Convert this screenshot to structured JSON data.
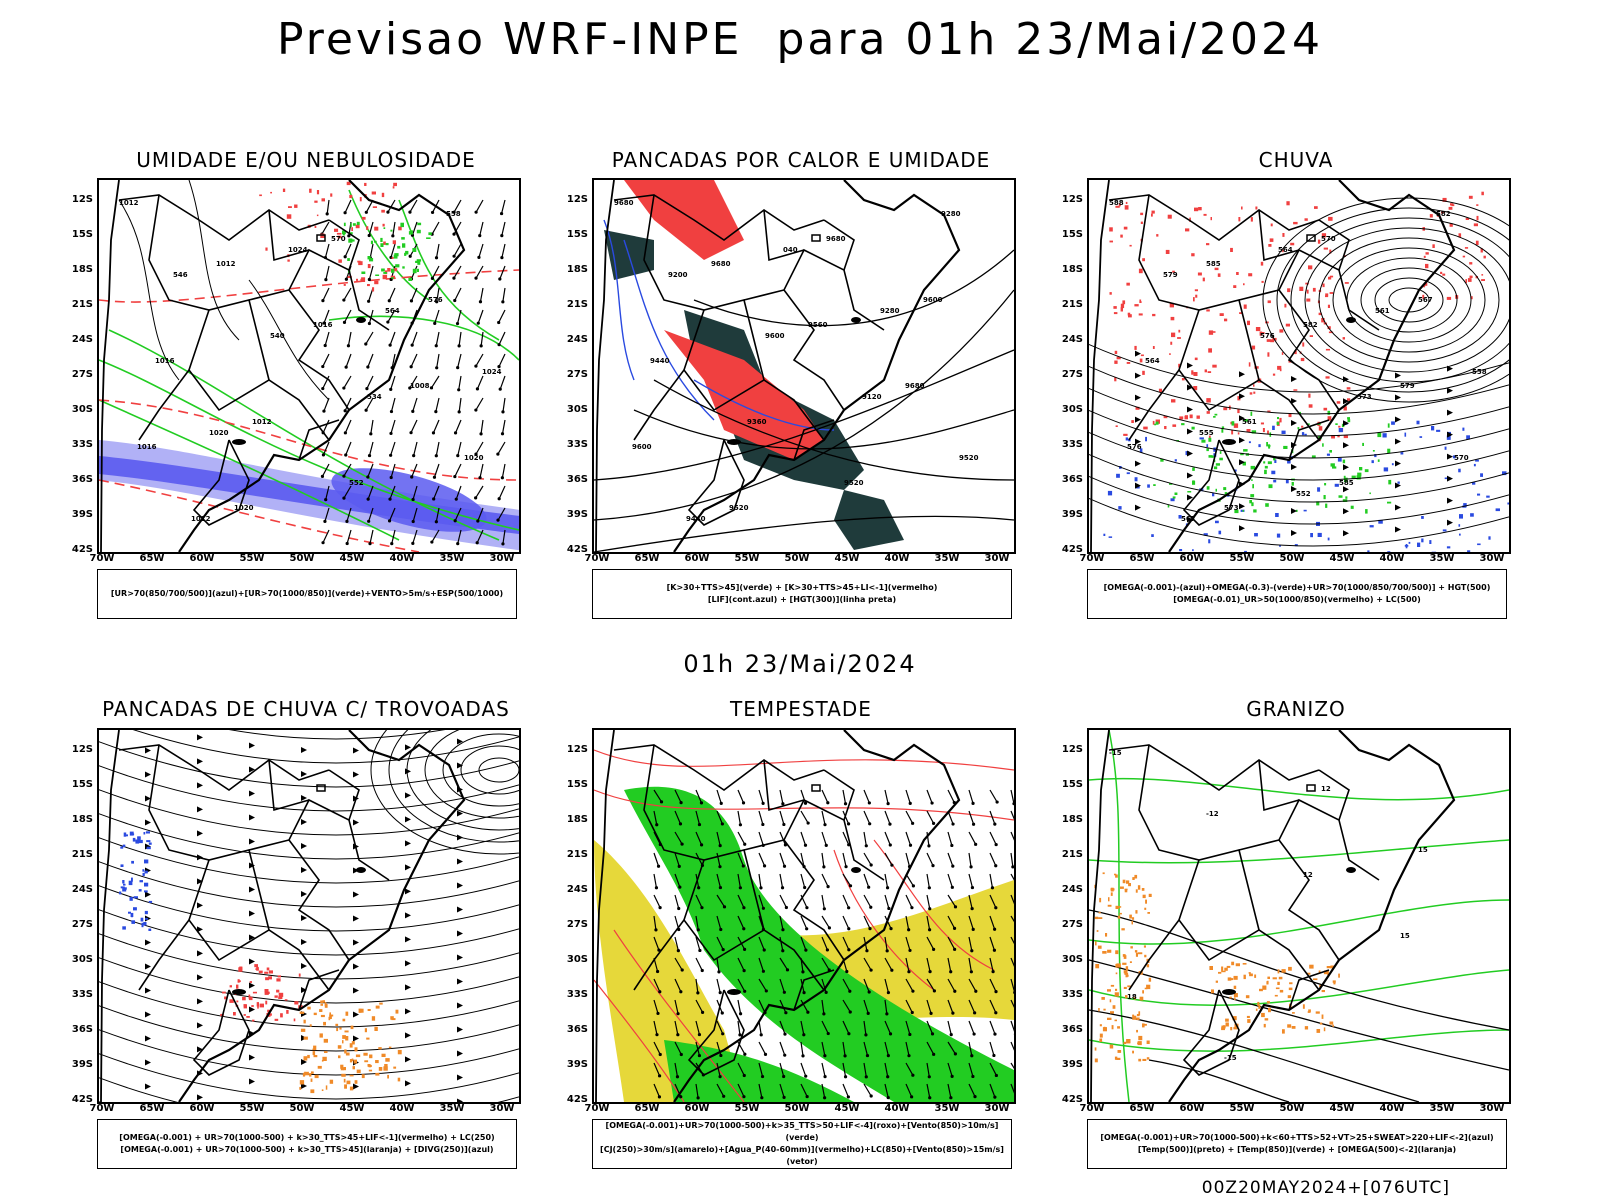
{
  "title": "Previsao WRF-INPE  para 01h 23/Mai/2024",
  "mid_title": "01h 23/Mai/2024",
  "footer": "00Z20MAY2024+[076UTC]",
  "lat_ticks": [
    "12S",
    "15S",
    "18S",
    "21S",
    "24S",
    "27S",
    "30S",
    "33S",
    "36S",
    "39S",
    "42S"
  ],
  "lon_ticks": [
    "70W",
    "65W",
    "60W",
    "55W",
    "50W",
    "45W",
    "40W",
    "35W",
    "30W"
  ],
  "panels": [
    {
      "title": "UMIDADE E/OU NEBULOSIDADE",
      "legend": [
        "[UR>70(850/700/500)](azul)+[UR>70(1000/850)](verde)+VENTO>5m/s+ESP(500/1000)"
      ]
    },
    {
      "title": "PANCADAS POR CALOR E UMIDADE",
      "legend": [
        "[K>30+TTS>45](verde) + [K>30+TTS>45+LI<-1](vermelho)",
        "[LIF](cont.azul) + [HGT(300)](linha preta)"
      ]
    },
    {
      "title": "CHUVA",
      "legend": [
        "[OMEGA(-0.001)-(azul)+OMEGA(-0.3)-(verde)+UR>70(1000/850/700/500)] + HGT(500)",
        "[OMEGA(-0.01)_UR>50(1000/850)(vermelho) + LC(500)"
      ]
    },
    {
      "title": "PANCADAS DE CHUVA C/ TROVOADAS",
      "legend": [
        "[OMEGA(-0.001) + UR>70(1000-500) + k>30_TTS>45+LIF<-1](vermelho) + LC(250)",
        "[OMEGA(-0.001) + UR>70(1000-500) + k>30_TTS>45](laranja) + [DIVG(250)](azul)"
      ]
    },
    {
      "title": "TEMPESTADE",
      "legend": [
        "[OMEGA(-0.001)+UR>70(1000-500)+k>35_TTS>50+LIF<-4](roxo)+[Vento(850)>10m/s](verde)",
        "[CJ(250)>30m/s](amarelo)+[Agua_P(40-60mm)](vermelho)+LC(850)+[Vento(850)>15m/s](vetor)"
      ]
    },
    {
      "title": "GRANIZO",
      "legend": [
        "[OMEGA(-0.001)+UR>70(1000-500)+k<60+TTS>52+VT>25+SWEAT>220+LIF<-2](azul)",
        "[Temp(500)](preto) + [Temp(850)](verde) + [OMEGA(500)<-2](laranja)"
      ]
    }
  ],
  "contour_labels": {
    "p1": [
      "1012",
      "1012",
      "1016",
      "1008",
      "1016",
      "1020",
      "570",
      "576",
      "1016",
      "1012",
      "552",
      "558",
      "546",
      "540",
      "534",
      "1020",
      "1012",
      "1024",
      "564",
      "1024",
      "1020"
    ],
    "p2": [
      "9680",
      "9680",
      "9560",
      "9680",
      "9600",
      "9520",
      "9680",
      "9600",
      "9440",
      "9360",
      "9520",
      "9280",
      "9200",
      "9600",
      "9120",
      "9520",
      "9440",
      "040",
      "9280"
    ],
    "p3": [
      "588",
      "585",
      "582",
      "579",
      "576",
      "573",
      "570",
      "567",
      "564",
      "561",
      "585",
      "582",
      "579",
      "576",
      "573",
      "570",
      "567",
      "564",
      "561",
      "558",
      "555",
      "552"
    ],
    "p6": [
      "-15",
      "-12",
      "12",
      "15",
      "18",
      "-15",
      "12",
      "15"
    ]
  },
  "colors": {
    "humid_blue": "#5b5bf0",
    "humid_light": "#a9a9f5",
    "green": "#22cc22",
    "red": "#f04040",
    "dark_teal": "#1f3b3b",
    "yellow": "#e6d83a",
    "orange": "#f08a28",
    "blue_dots": "#2a4ae0"
  }
}
